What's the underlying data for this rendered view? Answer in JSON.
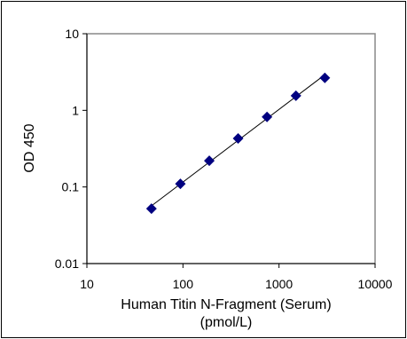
{
  "chart_data": {
    "type": "scatter",
    "title": "",
    "xlabel_line1": "Human Titin N-Fragment (Serum)",
    "xlabel_line2": "(pmol/L)",
    "ylabel": "OD 450",
    "x_scale": "log",
    "y_scale": "log",
    "xlim": [
      10,
      10000
    ],
    "ylim": [
      0.01,
      10
    ],
    "x_ticks": [
      "10",
      "100",
      "1000",
      "10000"
    ],
    "y_ticks": [
      "0.01",
      "0.1",
      "1",
      "10"
    ],
    "grid": false,
    "trendline": true,
    "marker": "diamond",
    "marker_color": "#000080",
    "series": [
      {
        "x": [
          47,
          94,
          188,
          375,
          750,
          1500,
          3000
        ],
        "y": [
          0.052,
          0.11,
          0.22,
          0.43,
          0.82,
          1.55,
          2.65
        ]
      }
    ]
  }
}
